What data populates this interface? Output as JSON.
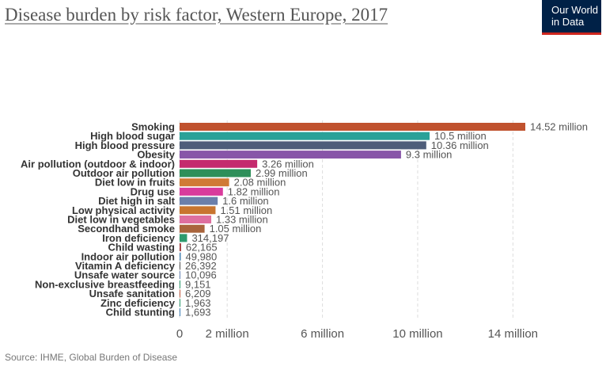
{
  "header": {
    "title": "Disease burden by risk factor, Western Europe, 2017",
    "logo_line1": "Our World",
    "logo_line2": "in Data"
  },
  "footer": {
    "source": "Source: IHME, Global Burden of Disease"
  },
  "chart_data": {
    "type": "bar",
    "orientation": "horizontal",
    "categories": [
      "Smoking",
      "High blood sugar",
      "High blood pressure",
      "Obesity",
      "Air pollution (outdoor & indoor)",
      "Outdoor air pollution",
      "Diet low in fruits",
      "Drug use",
      "Diet high in salt",
      "Low physical activity",
      "Diet low in vegetables",
      "Secondhand smoke",
      "Iron deficiency",
      "Child wasting",
      "Indoor air pollution",
      "Vitamin A deficiency",
      "Unsafe water source",
      "Non-exclusive breastfeeding",
      "Unsafe sanitation",
      "Zinc deficiency",
      "Child stunting"
    ],
    "values": [
      14520000,
      10500000,
      10360000,
      9300000,
      3260000,
      2990000,
      2080000,
      1820000,
      1600000,
      1510000,
      1330000,
      1050000,
      314197,
      62165,
      49980,
      26392,
      10096,
      9151,
      6209,
      1963,
      1693
    ],
    "value_labels": [
      "14.52 million",
      "10.5 million",
      "10.36 million",
      "9.3 million",
      "3.26 million",
      "2.99 million",
      "2.08 million",
      "1.82 million",
      "1.6 million",
      "1.51 million",
      "1.33 million",
      "1.05 million",
      "314,197",
      "62,165",
      "49,980",
      "26,392",
      "10,096",
      "9,151",
      "6,209",
      "1,963",
      "1,693"
    ],
    "colors": [
      "#c0522e",
      "#2aa198",
      "#4e5e7a",
      "#8855a8",
      "#c42b6e",
      "#2e8f5a",
      "#d07a35",
      "#d93b9c",
      "#6b7faa",
      "#c8752f",
      "#de6f9f",
      "#a9643c",
      "#2e9b6e",
      "#a33e3e",
      "#4a87b5",
      "#555555",
      "#6a86b6",
      "#2e9b6e",
      "#c05a40",
      "#2e9b6e",
      "#3e7fb5"
    ],
    "x_ticks": [
      0,
      2000000,
      6000000,
      10000000,
      14000000
    ],
    "x_tick_labels": [
      "0",
      "2 million",
      "6 million",
      "10 million",
      "14 million"
    ],
    "xlim": [
      0,
      14520000
    ],
    "grid": true
  }
}
